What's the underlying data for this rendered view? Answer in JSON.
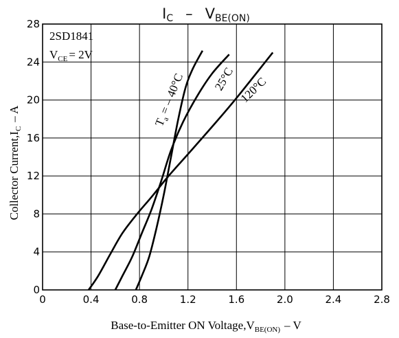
{
  "chart_data": {
    "type": "line",
    "title_main": "I",
    "title_main_sub": "C",
    "title_sep": "–",
    "title_rest": "V",
    "title_rest_sub": "BE(ON)",
    "device_label": "2SD1841",
    "condition_main": "V",
    "condition_sub": "CE",
    "condition_value": "= 2V",
    "xlabel_main": "Base-to-Emitter ON Voltage,V",
    "xlabel_sub": "BE(ON)",
    "xlabel_unit": "– V",
    "ylabel": "Collector Current,I",
    "ylabel_sub": "C",
    "ylabel_unit": "– A",
    "xlim": [
      0,
      2.8
    ],
    "ylim": [
      0,
      28
    ],
    "x_ticks": [
      "0",
      "0.4",
      "0.8",
      "1.2",
      "1.6",
      "2.0",
      "2.4",
      "2.8"
    ],
    "y_ticks": [
      "0",
      "4",
      "8",
      "12",
      "16",
      "20",
      "24",
      "28"
    ],
    "grid": true,
    "series": [
      {
        "name": "Ta = – 40°C",
        "x": [
          0.77,
          0.82,
          0.88,
          0.94,
          1.0,
          1.06,
          1.12,
          1.18,
          1.24,
          1.32
        ],
        "y": [
          0,
          1.5,
          3.5,
          6.5,
          10.0,
          14.0,
          18.0,
          21.3,
          23.3,
          25.2
        ]
      },
      {
        "name": "25°C",
        "x": [
          0.6,
          0.66,
          0.74,
          0.82,
          0.9,
          0.98,
          1.06,
          1.16,
          1.28,
          1.4,
          1.54
        ],
        "y": [
          0,
          1.5,
          3.5,
          6.0,
          8.5,
          11.5,
          14.7,
          17.7,
          20.5,
          22.8,
          24.8
        ]
      },
      {
        "name": "120°C",
        "x": [
          0.38,
          0.46,
          0.56,
          0.66,
          0.78,
          0.9,
          1.04,
          1.2,
          1.4,
          1.6,
          1.9
        ],
        "y": [
          0,
          1.5,
          3.8,
          6.0,
          8.0,
          9.8,
          12.0,
          14.3,
          17.2,
          20.2,
          25.0
        ]
      }
    ],
    "series_labels": [
      "T",
      "a",
      "= – 40°C",
      "25°C",
      "120°C"
    ]
  }
}
